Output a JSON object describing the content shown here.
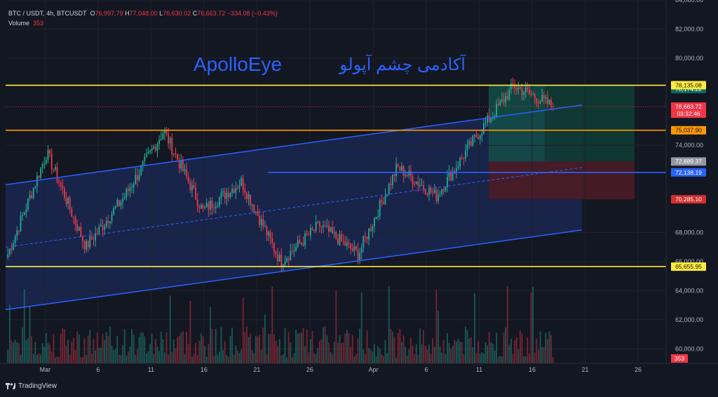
{
  "header": {
    "symbol": "BTC / USDT, 4h, BTCUSDT",
    "o_label": "O",
    "o_value": "76,997.79",
    "h_label": "H",
    "h_value": "77,048.00",
    "l_label": "L",
    "l_value": "76,630.02",
    "c_label": "C",
    "c_value": "76,663.72",
    "change": "−334.08 (−0.43%)",
    "volume_label": "Volume",
    "volume_value": "353"
  },
  "watermark": {
    "english": "ApolloEye",
    "persian": "آکادمی چشم آپولو"
  },
  "branding": {
    "label": "TradingView"
  },
  "colors": {
    "background": "#131722",
    "up": "#22ab94",
    "down": "#f23645",
    "channel": "#2962ff",
    "level_yellow": "#ffeb3b",
    "level_orange": "#ff9800",
    "channel_fill": "#1c2a59",
    "tp_fill": "#134e48",
    "sl_fill": "#4a1c25"
  },
  "chart_data": {
    "type": "candlestick",
    "symbol": "BTC / USDT",
    "interval": "4h",
    "ylim": [
      59000,
      84000
    ],
    "price_scale_ticks": [
      "84,000.00",
      "82,000.00",
      "80,000.00",
      "74,000.00",
      "68,000.00",
      "66,000.00",
      "64,000.00",
      "62,000.00",
      "60,000.00"
    ],
    "time_ticks": [
      "Mar",
      "6",
      "11",
      "16",
      "21",
      "26",
      "Apr",
      "6",
      "11",
      "16",
      "21",
      "26"
    ],
    "horizontal_levels": [
      {
        "price": 78135.08,
        "label": "78,135.08",
        "color": "#ffeb3b"
      },
      {
        "price": 75037.9,
        "label": "75,037.90",
        "color": "#ff9800"
      },
      {
        "price": 72138.19,
        "label": "72,138.19",
        "color": "#2962ff"
      },
      {
        "price": 65655.95,
        "label": "65,655.95",
        "color": "#ffeb3b"
      }
    ],
    "price_labels": [
      {
        "price": 78174.22,
        "label": "78,174.22",
        "kind": "target"
      },
      {
        "price": 76663.72,
        "label": "76,663.72",
        "sub": "03:32:46",
        "kind": "last"
      },
      {
        "price": 72889.37,
        "label": "72,889.37",
        "kind": "entry"
      },
      {
        "price": 70285.1,
        "label": "70,285.10",
        "kind": "stop"
      }
    ],
    "volume_last": "353",
    "last_close": 76663.72,
    "key_points": [
      {
        "t": "Mar 1",
        "price": 66500
      },
      {
        "t": "Mar 4",
        "price": 73500
      },
      {
        "t": "Mar 8",
        "price": 67000
      },
      {
        "t": "Mar 12",
        "price": 70500
      },
      {
        "t": "Mar 17",
        "price": 75000
      },
      {
        "t": "Mar 20",
        "price": 69500
      },
      {
        "t": "Mar 24",
        "price": 71500
      },
      {
        "t": "Mar 28",
        "price": 66000
      },
      {
        "t": "Apr 1",
        "price": 68500
      },
      {
        "t": "Apr 5",
        "price": 66500
      },
      {
        "t": "Apr 9",
        "price": 72500
      },
      {
        "t": "Apr 13",
        "price": 70500
      },
      {
        "t": "Apr 16",
        "price": 74500
      },
      {
        "t": "Apr 18",
        "price": 78100
      },
      {
        "t": "Apr 19",
        "price": 76663.72
      }
    ]
  }
}
